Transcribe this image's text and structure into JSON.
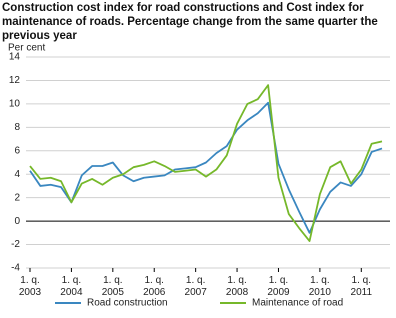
{
  "chart_data": {
    "type": "line",
    "title": [
      "Construction cost index for road constructions and Cost index for",
      "maintenance of roads. Percentage change from the same quarter the",
      "previous year"
    ],
    "y_label": "Per cent",
    "categories": [
      "1. q. 2003",
      null,
      null,
      null,
      "1. q. 2004",
      null,
      null,
      null,
      "1. q. 2005",
      null,
      null,
      null,
      "1. q. 2006",
      null,
      null,
      null,
      "1. q. 2007",
      null,
      null,
      null,
      "1. q. 2008",
      null,
      null,
      null,
      "1. q. 2009",
      null,
      null,
      null,
      "1. q. 2010",
      null,
      null,
      null,
      "1. q. 2011",
      null,
      null
    ],
    "series": [
      {
        "name": "Road construction",
        "color": "#3a87c0",
        "values": [
          4.3,
          3.0,
          3.1,
          2.9,
          1.6,
          3.9,
          4.7,
          4.7,
          5.0,
          3.9,
          3.4,
          3.7,
          3.8,
          3.9,
          4.4,
          4.5,
          4.6,
          5.0,
          5.8,
          6.4,
          7.8,
          8.6,
          9.2,
          10.1,
          4.9,
          2.7,
          0.8,
          -1.0,
          1.0,
          2.5,
          3.3,
          3.0,
          4.0,
          5.9,
          6.2
        ]
      },
      {
        "name": "Maintenance of road",
        "color": "#76b82a",
        "values": [
          4.7,
          3.6,
          3.7,
          3.4,
          1.6,
          3.2,
          3.6,
          3.1,
          3.7,
          4.0,
          4.6,
          4.8,
          5.1,
          4.7,
          4.2,
          4.3,
          4.4,
          3.8,
          4.4,
          5.6,
          8.3,
          10.0,
          10.4,
          11.6,
          3.7,
          0.6,
          -0.6,
          -1.7,
          2.3,
          4.6,
          5.1,
          3.2,
          4.4,
          6.6,
          6.8
        ]
      }
    ],
    "ylim": [
      -4,
      14
    ],
    "yticks": [
      -4,
      -2,
      0,
      2,
      4,
      6,
      8,
      10,
      12,
      14
    ],
    "grid": true
  }
}
